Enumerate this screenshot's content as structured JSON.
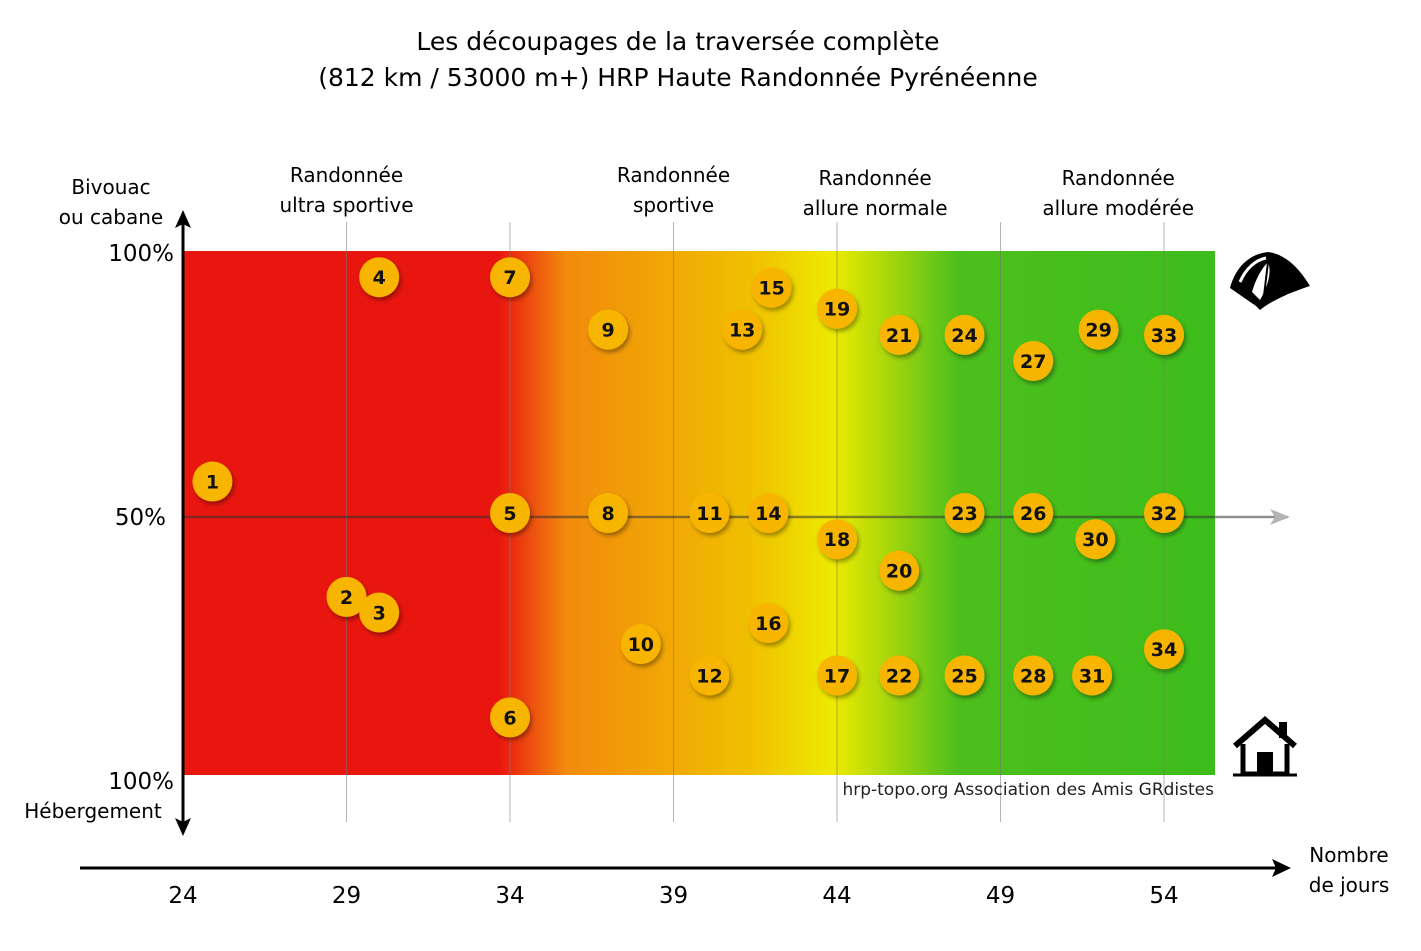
{
  "chart_data": {
    "type": "scatter",
    "title": [
      "Les découpages de la traversée complète",
      "(812 km / 53000 m+) HRP Haute Randonnée Pyrénéenne"
    ],
    "xlabel": [
      "Nombre",
      "de jours"
    ],
    "ylabel_top": [
      "Bivouac",
      "ou cabane"
    ],
    "ylabel_bottom": "Hébergement",
    "y_tick_labels": [
      "100%",
      "50%",
      "100%"
    ],
    "xlim": [
      24,
      55.5
    ],
    "x_ticks": [
      24,
      29,
      34,
      39,
      44,
      49,
      54
    ],
    "categories": [
      {
        "lines": [
          "Randonnée",
          "ultra sportive"
        ],
        "x": 29
      },
      {
        "lines": [
          "Randonnée",
          "sportive"
        ],
        "x": 39
      },
      {
        "lines": [
          "Randonnée",
          "allure normale"
        ],
        "x": 47
      },
      {
        "lines": [
          "Randonnée",
          "allure modérée"
        ],
        "x": 52.6
      }
    ],
    "background_gradient": [
      "#e8160f",
      "#e8160f",
      "#f5a40a",
      "#eeea00",
      "#3dbd1c",
      "#3dbd1c"
    ],
    "point_color": "#f7b500",
    "grid": true,
    "icons": {
      "top": "tent-icon",
      "bottom": "house-icon"
    },
    "points": [
      {
        "label": "1",
        "x": 24.9,
        "y": 56
      },
      {
        "label": "2",
        "x": 29.0,
        "y": 34
      },
      {
        "label": "3",
        "x": 30.0,
        "y": 31
      },
      {
        "label": "4",
        "x": 30.0,
        "y": 95
      },
      {
        "label": "5",
        "x": 34.0,
        "y": 50
      },
      {
        "label": "6",
        "x": 34.0,
        "y": 11
      },
      {
        "label": "7",
        "x": 34.0,
        "y": 95
      },
      {
        "label": "8",
        "x": 37.0,
        "y": 50
      },
      {
        "label": "9",
        "x": 37.0,
        "y": 85
      },
      {
        "label": "10",
        "x": 38.0,
        "y": 25
      },
      {
        "label": "11",
        "x": 40.1,
        "y": 50
      },
      {
        "label": "12",
        "x": 40.1,
        "y": 19
      },
      {
        "label": "13",
        "x": 41.1,
        "y": 85
      },
      {
        "label": "14",
        "x": 41.9,
        "y": 50
      },
      {
        "label": "15",
        "x": 42.0,
        "y": 93
      },
      {
        "label": "16",
        "x": 41.9,
        "y": 29
      },
      {
        "label": "17",
        "x": 44.0,
        "y": 19
      },
      {
        "label": "18",
        "x": 44.0,
        "y": 45
      },
      {
        "label": "19",
        "x": 44.0,
        "y": 89
      },
      {
        "label": "20",
        "x": 45.9,
        "y": 39
      },
      {
        "label": "21",
        "x": 45.9,
        "y": 84
      },
      {
        "label": "22",
        "x": 45.9,
        "y": 19
      },
      {
        "label": "23",
        "x": 47.9,
        "y": 50
      },
      {
        "label": "24",
        "x": 47.9,
        "y": 84
      },
      {
        "label": "25",
        "x": 47.9,
        "y": 19
      },
      {
        "label": "26",
        "x": 50.0,
        "y": 50
      },
      {
        "label": "27",
        "x": 50.0,
        "y": 79
      },
      {
        "label": "28",
        "x": 50.0,
        "y": 19
      },
      {
        "label": "29",
        "x": 52.0,
        "y": 85
      },
      {
        "label": "30",
        "x": 51.9,
        "y": 45
      },
      {
        "label": "31",
        "x": 51.8,
        "y": 19
      },
      {
        "label": "32",
        "x": 54.0,
        "y": 50
      },
      {
        "label": "33",
        "x": 54.0,
        "y": 84
      },
      {
        "label": "34",
        "x": 54.0,
        "y": 24
      }
    ]
  },
  "credit": "hrp-topo.org Association des Amis GRdistes"
}
